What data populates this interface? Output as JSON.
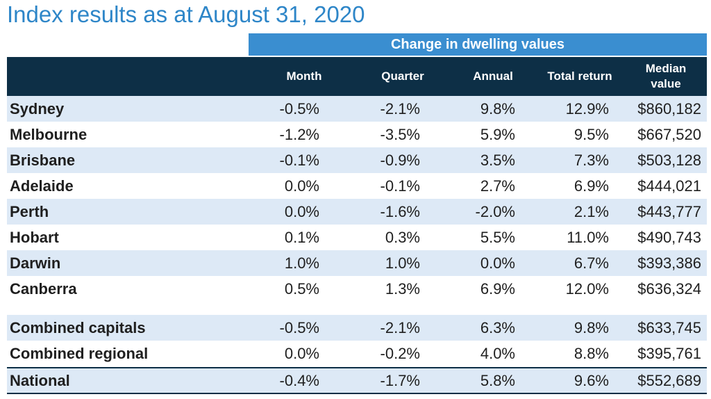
{
  "title": "Index results as at August 31, 2020",
  "band_label": "Change in dwelling values",
  "header": {
    "month": "Month",
    "quarter": "Quarter",
    "annual": "Annual",
    "total_return": "Total return",
    "median_line1": "Median",
    "median_line2": "value"
  },
  "chart_data": {
    "type": "table",
    "title": "Index results as at August 31, 2020",
    "group_header": "Change in dwelling values",
    "columns": [
      "Month",
      "Quarter",
      "Annual",
      "Total return",
      "Median value"
    ],
    "rows": [
      {
        "name": "Sydney",
        "values": [
          "-0.5%",
          "-2.1%",
          "9.8%",
          "12.9%",
          "$860,182"
        ]
      },
      {
        "name": "Melbourne",
        "values": [
          "-1.2%",
          "-3.5%",
          "5.9%",
          "9.5%",
          "$667,520"
        ]
      },
      {
        "name": "Brisbane",
        "values": [
          "-0.1%",
          "-0.9%",
          "3.5%",
          "7.3%",
          "$503,128"
        ]
      },
      {
        "name": "Adelaide",
        "values": [
          "0.0%",
          "-0.1%",
          "2.7%",
          "6.9%",
          "$444,021"
        ]
      },
      {
        "name": "Perth",
        "values": [
          "0.0%",
          "-1.6%",
          "-2.0%",
          "2.1%",
          "$443,777"
        ]
      },
      {
        "name": "Hobart",
        "values": [
          "0.1%",
          "0.3%",
          "5.5%",
          "11.0%",
          "$490,743"
        ]
      },
      {
        "name": "Darwin",
        "values": [
          "1.0%",
          "1.0%",
          "0.0%",
          "6.7%",
          "$393,386"
        ]
      },
      {
        "name": "Canberra",
        "values": [
          "0.5%",
          "1.3%",
          "6.9%",
          "12.0%",
          "$636,324"
        ]
      },
      {
        "name": "Combined capitals",
        "values": [
          "-0.5%",
          "-2.1%",
          "6.3%",
          "9.8%",
          "$633,745"
        ]
      },
      {
        "name": "Combined regional",
        "values": [
          "0.0%",
          "-0.2%",
          "4.0%",
          "8.8%",
          "$395,761"
        ]
      },
      {
        "name": "National",
        "values": [
          "-0.4%",
          "-1.7%",
          "5.8%",
          "9.6%",
          "$552,689"
        ]
      }
    ]
  },
  "colors": {
    "title": "#2e86c8",
    "band": "#3a8ed0",
    "header": "#0d2f46",
    "stripe": "#dde9f6"
  }
}
